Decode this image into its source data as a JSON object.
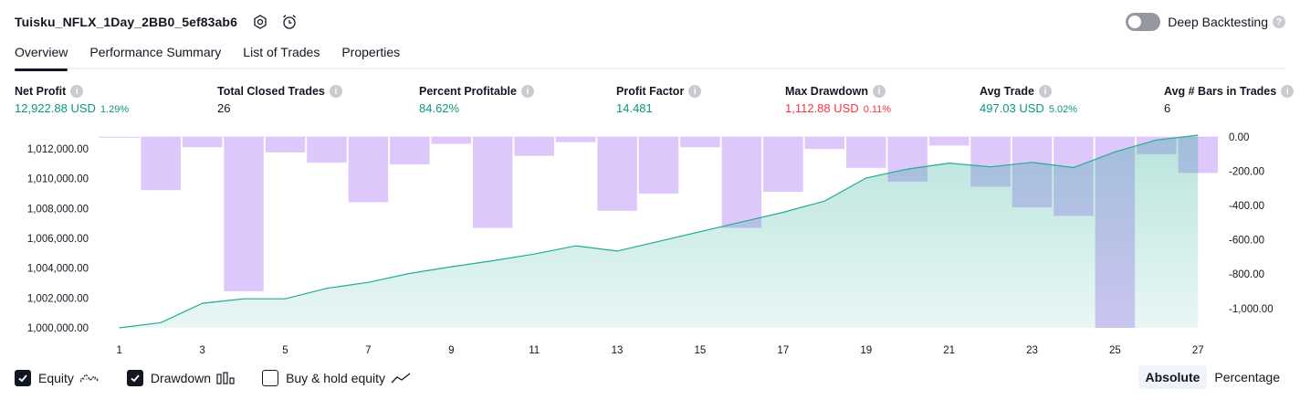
{
  "header": {
    "title": "Tuisku_NFLX_1Day_2BB0_5ef83ab6",
    "deep_backtesting_label": "Deep Backtesting"
  },
  "tabs": [
    {
      "label": "Overview",
      "active": true
    },
    {
      "label": "Performance Summary",
      "active": false
    },
    {
      "label": "List of Trades",
      "active": false
    },
    {
      "label": "Properties",
      "active": false
    }
  ],
  "metrics": [
    {
      "label": "Net Profit",
      "value": "12,922.88 USD",
      "pct": "1.29%",
      "color": "#089981"
    },
    {
      "label": "Total Closed Trades",
      "value": "26",
      "pct": "",
      "color": "#131722"
    },
    {
      "label": "Percent Profitable",
      "value": "84.62%",
      "pct": "",
      "color": "#089981"
    },
    {
      "label": "Profit Factor",
      "value": "14.481",
      "pct": "",
      "color": "#089981"
    },
    {
      "label": "Max Drawdown",
      "value": "1,112.88 USD",
      "pct": "0.11%",
      "color": "#f23645"
    },
    {
      "label": "Avg Trade",
      "value": "497.03 USD",
      "pct": "5.02%",
      "color": "#089981"
    },
    {
      "label": "Avg # Bars in Trades",
      "value": "6",
      "pct": "",
      "color": "#131722"
    }
  ],
  "chart_data": {
    "type": "line",
    "x_ticks": [
      "1",
      "3",
      "5",
      "7",
      "9",
      "11",
      "13",
      "15",
      "17",
      "19",
      "21",
      "23",
      "25",
      "27"
    ],
    "left_axis_ticks": [
      "1,012,000.00",
      "1,010,000.00",
      "1,008,000.00",
      "1,006,000.00",
      "1,004,000.00",
      "1,002,000.00",
      "1,000,000.00"
    ],
    "right_axis_ticks": [
      "0.00",
      "-200.00",
      "-400.00",
      "-600.00",
      "-800.00",
      "-1,000.00"
    ],
    "equity_ylim": [
      1000000,
      1012800
    ],
    "drawdown_ylim": [
      -1112.88,
      0
    ],
    "series": [
      {
        "name": "Equity",
        "x": [
          1,
          2,
          3,
          4,
          5,
          6,
          7,
          8,
          9,
          10,
          11,
          12,
          13,
          14,
          15,
          16,
          17,
          18,
          19,
          20,
          21,
          22,
          23,
          24,
          25,
          26,
          27
        ],
        "values": [
          1000000,
          1000350,
          1001650,
          1001950,
          1001950,
          1002650,
          1003050,
          1003650,
          1004100,
          1004500,
          1004950,
          1005500,
          1005150,
          1005800,
          1006450,
          1007100,
          1007750,
          1008500,
          1010050,
          1010650,
          1011050,
          1010800,
          1011100,
          1010750,
          1011800,
          1012600,
          1012923
        ],
        "color": "#22ab94"
      },
      {
        "name": "Drawdown",
        "x": [
          1,
          2,
          3,
          4,
          5,
          6,
          7,
          8,
          9,
          10,
          11,
          12,
          13,
          14,
          15,
          16,
          17,
          18,
          19,
          20,
          21,
          22,
          23,
          24,
          25,
          26,
          27
        ],
        "values": [
          0,
          -310,
          -60,
          -900,
          -90,
          -150,
          -380,
          -160,
          -40,
          -530,
          -110,
          -30,
          -430,
          -330,
          -60,
          -530,
          -320,
          -70,
          -180,
          -260,
          -50,
          -290,
          -410,
          -460,
          -1112.88,
          -100,
          -210
        ],
        "color": "#c9a5f8"
      }
    ]
  },
  "legend": {
    "equity_label": "Equity",
    "drawdown_label": "Drawdown",
    "buyhold_label": "Buy & hold equity"
  },
  "mode": {
    "absolute_label": "Absolute",
    "percentage_label": "Percentage"
  }
}
